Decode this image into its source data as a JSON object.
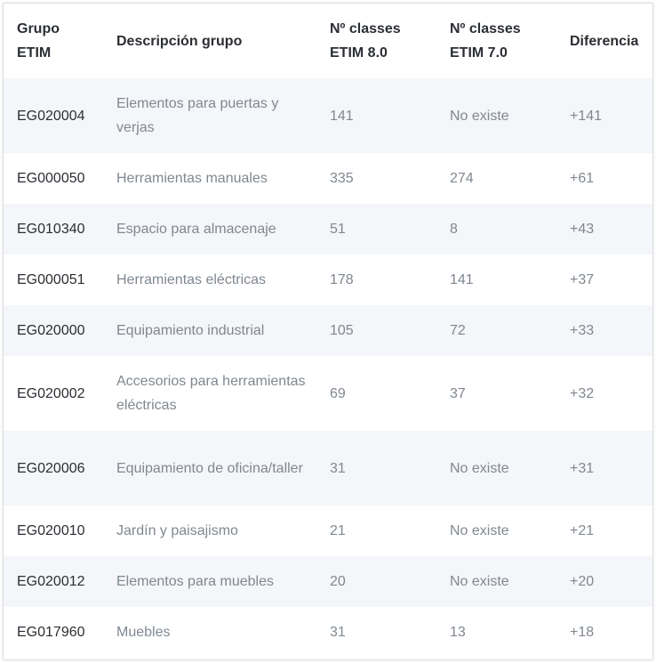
{
  "table": {
    "headers": [
      "Grupo ETIM",
      "Descripción grupo",
      "Nº classes ETIM 8.0",
      "Nº classes ETIM 7.0",
      "Diferencia"
    ],
    "rows": [
      {
        "code": "EG020004",
        "description": "Elementos para puertas y verjas",
        "etim8": "141",
        "etim7": "No existe",
        "diff": "+141"
      },
      {
        "code": "EG000050",
        "description": "Herramientas manuales",
        "etim8": "335",
        "etim7": "274",
        "diff": "+61"
      },
      {
        "code": "EG010340",
        "description": "Espacio para almacenaje",
        "etim8": "51",
        "etim7": "8",
        "diff": "+43"
      },
      {
        "code": "EG000051",
        "description": "Herramientas eléctricas",
        "etim8": "178",
        "etim7": "141",
        "diff": "+37"
      },
      {
        "code": "EG020000",
        "description": "Equipamiento industrial",
        "etim8": "105",
        "etim7": "72",
        "diff": "+33"
      },
      {
        "code": "EG020002",
        "description": "Accesorios para herramientas eléctricas",
        "etim8": "69",
        "etim7": "37",
        "diff": "+32"
      },
      {
        "code": "EG020006",
        "description": "Equipamiento de oficina/taller",
        "etim8": "31",
        "etim7": "No existe",
        "diff": "+31"
      },
      {
        "code": "EG020010",
        "description": "Jardín y paisajismo",
        "etim8": "21",
        "etim7": "No existe",
        "diff": "+21"
      },
      {
        "code": "EG020012",
        "description": "Elementos para muebles",
        "etim8": "20",
        "etim7": "No existe",
        "diff": "+20"
      },
      {
        "code": "EG017960",
        "description": "Muebles",
        "etim8": "31",
        "etim7": "13",
        "diff": "+18"
      }
    ]
  },
  "colors": {
    "header_text": "#2b2e33",
    "body_text": "#808890",
    "stripe": "#f4f6f9",
    "border": "#dcdfe3"
  }
}
